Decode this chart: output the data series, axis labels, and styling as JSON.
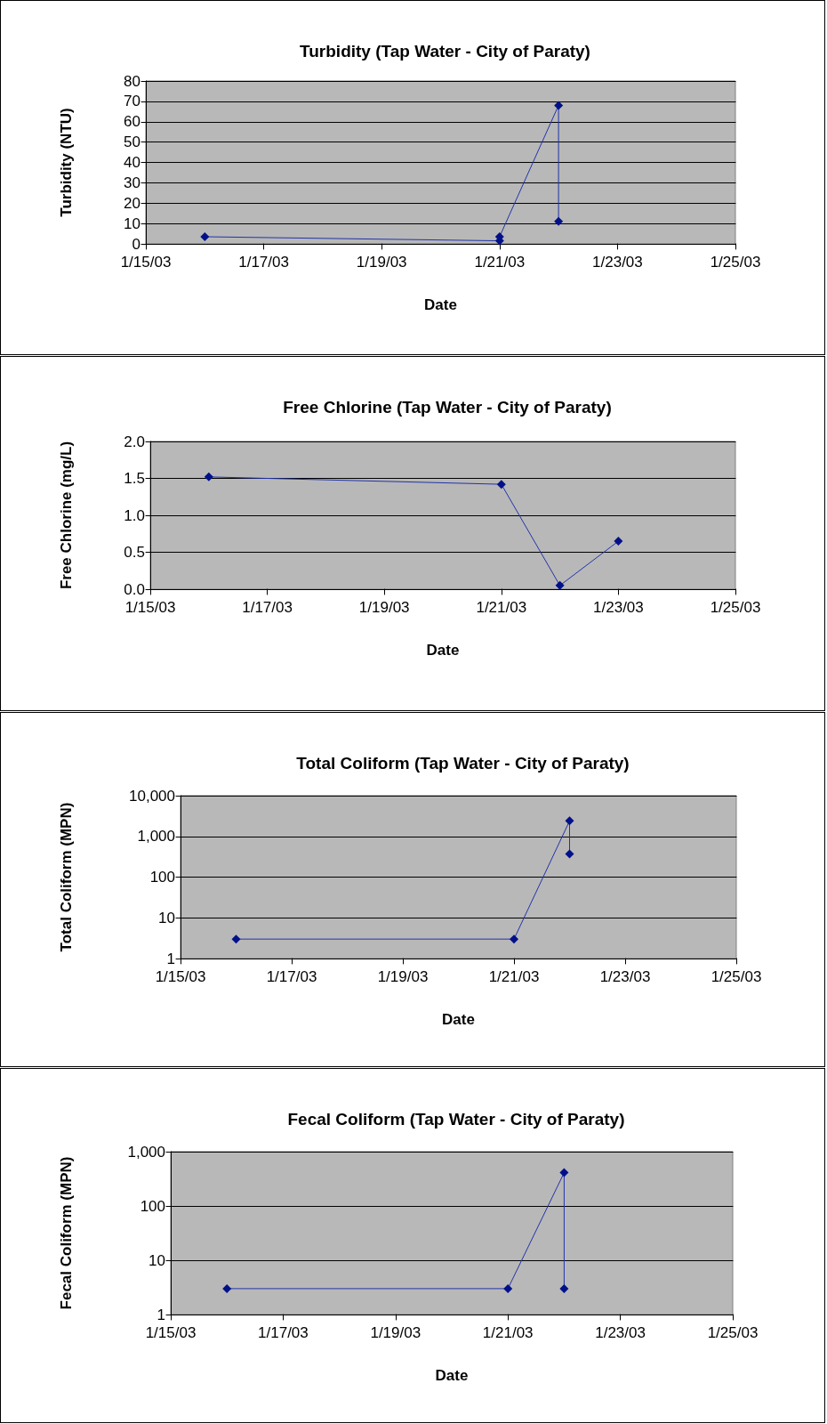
{
  "chart_data": [
    {
      "type": "line",
      "title": "Turbidity (Tap Water - City of Paraty)",
      "xlabel": "Date",
      "ylabel": "Turbidity (NTU)",
      "x": [
        "--01-16",
        "--01-21",
        "--01-21",
        "--01-22",
        "--01-22"
      ],
      "series": [
        {
          "color": "#2233aa",
          "values": [
            3.5,
            1.5,
            3.5,
            68,
            11
          ]
        }
      ],
      "xlim": [
        "--01-15",
        "--01-25"
      ],
      "xticks": [
        {
          "value": "--01-15",
          "label": "1/15/03"
        },
        {
          "value": "--01-17",
          "label": "1/17/03"
        },
        {
          "value": "--01-19",
          "label": "1/19/03"
        },
        {
          "value": "--01-21",
          "label": "1/21/03"
        },
        {
          "value": "--01-23",
          "label": "1/23/03"
        },
        {
          "value": "--01-25",
          "label": "1/25/03"
        }
      ],
      "ylim": [
        0,
        80
      ],
      "yticks": [
        0,
        10,
        20,
        30,
        40,
        50,
        60,
        70,
        80
      ],
      "grid": "y",
      "marker": "diamond",
      "line_style": "solid"
    },
    {
      "type": "line",
      "title": "Free Chlorine (Tap Water - City of Paraty)",
      "xlabel": "Date",
      "ylabel": "Free Chlorine (mg/L)",
      "x": [
        "--01-16",
        "--01-21",
        "--01-22",
        "--01-23"
      ],
      "series": [
        {
          "color": "#2233aa",
          "values": [
            1.52,
            1.42,
            0.05,
            0.65
          ]
        }
      ],
      "xlim": [
        "--01-15",
        "--01-25"
      ],
      "xticks": [
        {
          "value": "--01-15",
          "label": "1/15/03"
        },
        {
          "value": "--01-17",
          "label": "1/17/03"
        },
        {
          "value": "--01-19",
          "label": "1/19/03"
        },
        {
          "value": "--01-21",
          "label": "1/21/03"
        },
        {
          "value": "--01-23",
          "label": "1/23/03"
        },
        {
          "value": "--01-25",
          "label": "1/25/03"
        }
      ],
      "ylim": [
        0,
        2
      ],
      "yticks": [
        {
          "value": 0,
          "label": "0.0"
        },
        {
          "value": 0.5,
          "label": "0.5"
        },
        {
          "value": 1,
          "label": "1.0"
        },
        {
          "value": 1.5,
          "label": "1.5"
        },
        {
          "value": 2,
          "label": "2.0"
        }
      ],
      "grid": "y",
      "marker": "diamond",
      "line_style": "solid"
    },
    {
      "type": "line",
      "title": "Total Coliform (Tap Water - City of Paraty)",
      "xlabel": "Date",
      "ylabel": "Total Coliform (MPN)",
      "x": [
        "--01-16",
        "--01-21",
        "--01-22",
        "--01-22"
      ],
      "series": [
        {
          "color": "#2233aa",
          "values": [
            3,
            3,
            2400,
            370
          ]
        }
      ],
      "xlim": [
        "--01-15",
        "--01-25"
      ],
      "xticks": [
        {
          "value": "--01-15",
          "label": "1/15/03"
        },
        {
          "value": "--01-17",
          "label": "1/17/03"
        },
        {
          "value": "--01-19",
          "label": "1/19/03"
        },
        {
          "value": "--01-21",
          "label": "1/21/03"
        },
        {
          "value": "--01-23",
          "label": "1/23/03"
        },
        {
          "value": "--01-25",
          "label": "1/25/03"
        }
      ],
      "ylim": [
        1,
        10000
      ],
      "yticks": [
        1,
        10,
        100,
        {
          "value": 1000,
          "label": "1,000"
        },
        {
          "value": 10000,
          "label": "10,000"
        }
      ],
      "log": "y",
      "grid": "y",
      "marker": "diamond",
      "line_style": "solid"
    },
    {
      "type": "line",
      "title": "Fecal Coliform (Tap Water - City of Paraty)",
      "xlabel": "Date",
      "ylabel": "Fecal Coliform (MPN)",
      "x": [
        "--01-16",
        "--01-21",
        "--01-22",
        "--01-22"
      ],
      "series": [
        {
          "color": "#2233aa",
          "values": [
            3,
            3,
            410,
            3
          ]
        }
      ],
      "xlim": [
        "--01-15",
        "--01-25"
      ],
      "xticks": [
        {
          "value": "--01-15",
          "label": "1/15/03"
        },
        {
          "value": "--01-17",
          "label": "1/17/03"
        },
        {
          "value": "--01-19",
          "label": "1/19/03"
        },
        {
          "value": "--01-21",
          "label": "1/21/03"
        },
        {
          "value": "--01-23",
          "label": "1/23/03"
        },
        {
          "value": "--01-25",
          "label": "1/25/03"
        }
      ],
      "ylim": [
        1,
        1000
      ],
      "yticks": [
        1,
        10,
        100,
        {
          "value": 1000,
          "label": "1,000"
        }
      ],
      "log": "y",
      "grid": "y",
      "marker": "diamond",
      "line_style": "solid"
    }
  ]
}
